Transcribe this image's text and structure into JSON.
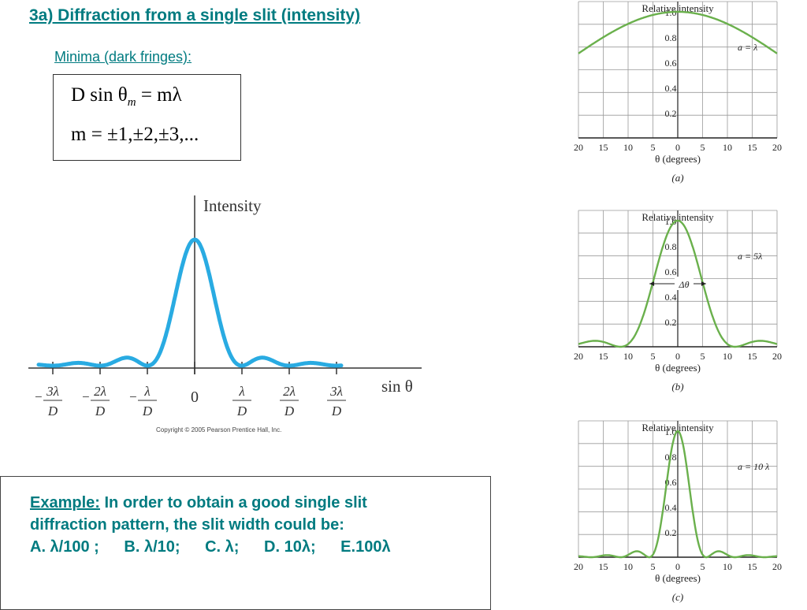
{
  "slide": {
    "title": "3a) Diffraction from a single slit (intensity)",
    "subtitle": "Minima (dark fringes):",
    "equation_line1": {
      "lhs": "D sin θ",
      "sub": "m",
      "rhs": "= mλ"
    },
    "equation_line2": "m = ±1,±2,±3,...",
    "copyright": "Copyright © 2005 Pearson Prentice Hall, Inc.",
    "example": {
      "label": "Example:",
      "question_line1": "In order to obtain a good single slit",
      "question_line2": "diffraction pattern, the slit width could be:",
      "options": [
        "A. λ/100 ;",
        "B. λ/10;",
        "C. λ;",
        "D. 10λ;",
        "E.100λ"
      ]
    },
    "colors": {
      "title": "#007b80",
      "main_curve": "#29abe2",
      "side_curves": "#6ab04c"
    }
  },
  "chart_data": [
    {
      "type": "line",
      "title": "",
      "ylabel": "Intensity",
      "xlabel": "sin θ",
      "x_ticks": [
        {
          "sign": "−",
          "num": "3λ",
          "den": "D"
        },
        {
          "sign": "−",
          "num": "2λ",
          "den": "D"
        },
        {
          "sign": "−",
          "num": "λ",
          "den": "D"
        },
        {
          "sign": "",
          "num": "0",
          "den": ""
        },
        {
          "sign": "",
          "num": "λ",
          "den": "D"
        },
        {
          "sign": "",
          "num": "2λ",
          "den": "D"
        },
        {
          "sign": "",
          "num": "3λ",
          "den": "D"
        }
      ],
      "series": [
        {
          "function": "sinc_squared",
          "x_range_units_of_lambda_over_D": [
            -3.3,
            3.1
          ]
        }
      ]
    },
    {
      "type": "line",
      "ylabel": "Relative intensity",
      "xlabel": "θ (degrees)",
      "caption": "(a)",
      "annotation": "a = λ",
      "a_over_lambda": 1,
      "x_tick_labels": [
        "20",
        "15",
        "10",
        "5",
        "0",
        "5",
        "10",
        "15",
        "20"
      ],
      "y_tick_labels": [
        "1.0",
        "0.8",
        "0.6",
        "0.4",
        "0.2"
      ],
      "xlim": [
        -20,
        20
      ],
      "ylim": [
        0,
        1.05
      ]
    },
    {
      "type": "line",
      "ylabel": "Relative intensity",
      "xlabel": "θ (degrees)",
      "caption": "(b)",
      "annotation": "a = 5λ",
      "width_label": "Δθ",
      "a_over_lambda": 5,
      "x_tick_labels": [
        "20",
        "15",
        "10",
        "5",
        "0",
        "5",
        "10",
        "15",
        "20"
      ],
      "y_tick_labels": [
        "1.0",
        "0.8",
        "0.6",
        "0.4",
        "0.2"
      ],
      "xlim": [
        -20,
        20
      ],
      "ylim": [
        0,
        1.05
      ]
    },
    {
      "type": "line",
      "ylabel": "Relative intensity",
      "xlabel": "θ (degrees)",
      "caption": "(c)",
      "annotation": "a = 10 λ",
      "a_over_lambda": 10,
      "x_tick_labels": [
        "20",
        "15",
        "10",
        "5",
        "0",
        "5",
        "10",
        "15",
        "20"
      ],
      "y_tick_labels": [
        "1.0",
        "0.8",
        "0.6",
        "0.4",
        "0.2"
      ],
      "xlim": [
        -20,
        20
      ],
      "ylim": [
        0,
        1.05
      ]
    }
  ]
}
